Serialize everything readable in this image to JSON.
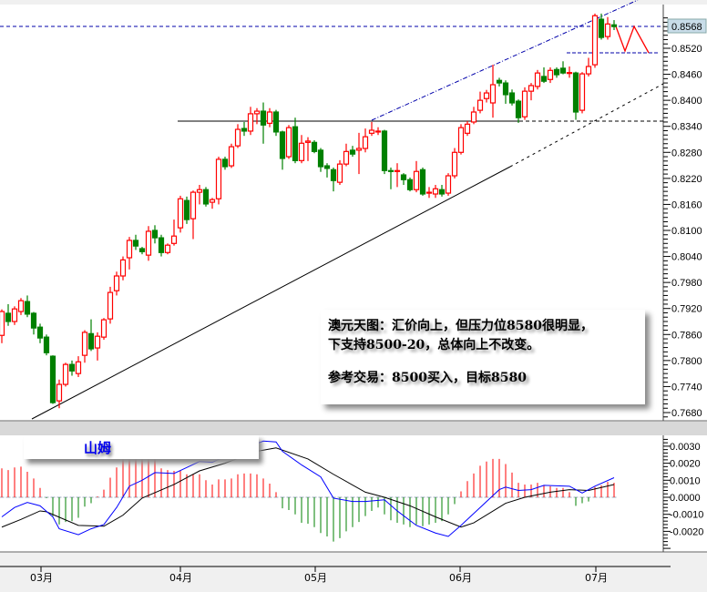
{
  "chart_data": [
    {
      "type": "candlestick",
      "title": "",
      "y_ticks": [
        "0.8520",
        "0.8460",
        "0.8400",
        "0.8340",
        "0.8280",
        "0.8220",
        "0.8160",
        "0.8100",
        "0.8040",
        "0.7980",
        "0.7920",
        "0.7860",
        "0.7800",
        "0.7740",
        "0.7680"
      ],
      "ylim": [
        0.7661,
        0.8602
      ],
      "current_price": "0.8568",
      "x_ticks": [
        "03月",
        "04月",
        "05月",
        "06月",
        "07月"
      ],
      "up_color": "#ff0000",
      "down_color": "#008000",
      "ohlc": [
        [
          0.7858,
          0.7918,
          0.784,
          0.7913
        ],
        [
          0.7909,
          0.793,
          0.788,
          0.789
        ],
        [
          0.789,
          0.7925,
          0.7882,
          0.7919
        ],
        [
          0.7913,
          0.7944,
          0.7905,
          0.7938
        ],
        [
          0.7936,
          0.795,
          0.79,
          0.7907
        ],
        [
          0.7909,
          0.7912,
          0.786,
          0.7875
        ],
        [
          0.7877,
          0.7885,
          0.784,
          0.7852
        ],
        [
          0.7854,
          0.786,
          0.7812,
          0.7818
        ],
        [
          0.781,
          0.7812,
          0.77,
          0.7703
        ],
        [
          0.7707,
          0.7756,
          0.769,
          0.7745
        ],
        [
          0.7745,
          0.7795,
          0.774,
          0.7791
        ],
        [
          0.7791,
          0.78,
          0.7765,
          0.7776
        ],
        [
          0.777,
          0.781,
          0.7762,
          0.7797
        ],
        [
          0.7812,
          0.787,
          0.7795,
          0.7865
        ],
        [
          0.7862,
          0.7895,
          0.7822,
          0.7827
        ],
        [
          0.7829,
          0.7865,
          0.78,
          0.7856
        ],
        [
          0.7854,
          0.7898,
          0.7848,
          0.7894
        ],
        [
          0.7896,
          0.797,
          0.7885,
          0.7957
        ],
        [
          0.7961,
          0.8005,
          0.795,
          0.7995
        ],
        [
          0.7995,
          0.804,
          0.7985,
          0.8032
        ],
        [
          0.8037,
          0.8085,
          0.801,
          0.8077
        ],
        [
          0.8077,
          0.809,
          0.8055,
          0.8064
        ],
        [
          0.8058,
          0.8062,
          0.8045,
          0.8051
        ],
        [
          0.8043,
          0.811,
          0.803,
          0.8098
        ],
        [
          0.81,
          0.8112,
          0.807,
          0.8083
        ],
        [
          0.8083,
          0.809,
          0.804,
          0.8049
        ],
        [
          0.8049,
          0.807,
          0.8045,
          0.8066
        ],
        [
          0.807,
          0.8125,
          0.8065,
          0.8087
        ],
        [
          0.8106,
          0.818,
          0.8095,
          0.8173
        ],
        [
          0.8169,
          0.8178,
          0.8115,
          0.8125
        ],
        [
          0.8127,
          0.8192,
          0.808,
          0.8188
        ],
        [
          0.8188,
          0.8205,
          0.816,
          0.8194
        ],
        [
          0.8194,
          0.82,
          0.8155,
          0.8161
        ],
        [
          0.8165,
          0.8175,
          0.815,
          0.8171
        ],
        [
          0.8173,
          0.827,
          0.816,
          0.8264
        ],
        [
          0.8264,
          0.827,
          0.824,
          0.8247
        ],
        [
          0.8249,
          0.83,
          0.8244,
          0.8293
        ],
        [
          0.8295,
          0.8345,
          0.829,
          0.8333
        ],
        [
          0.8335,
          0.835,
          0.8318,
          0.8329
        ],
        [
          0.8329,
          0.8385,
          0.832,
          0.8369
        ],
        [
          0.8369,
          0.8382,
          0.8345,
          0.8375
        ],
        [
          0.8375,
          0.8395,
          0.83,
          0.8343
        ],
        [
          0.8347,
          0.8382,
          0.8338,
          0.8373
        ],
        [
          0.8373,
          0.8378,
          0.8318,
          0.8327
        ],
        [
          0.8327,
          0.833,
          0.824,
          0.8266
        ],
        [
          0.827,
          0.8343,
          0.8265,
          0.8337
        ],
        [
          0.8339,
          0.836,
          0.8255,
          0.8261
        ],
        [
          0.8261,
          0.832,
          0.8255,
          0.8301
        ],
        [
          0.8303,
          0.8315,
          0.826,
          0.8306
        ],
        [
          0.8303,
          0.8308,
          0.8278,
          0.8282
        ],
        [
          0.8285,
          0.829,
          0.8235,
          0.8247
        ],
        [
          0.8249,
          0.8255,
          0.8222,
          0.8243
        ],
        [
          0.824,
          0.8245,
          0.819,
          0.8215
        ],
        [
          0.8211,
          0.8262,
          0.8205,
          0.8253
        ],
        [
          0.8253,
          0.83,
          0.8248,
          0.8282
        ],
        [
          0.8285,
          0.8295,
          0.827,
          0.8276
        ],
        [
          0.8285,
          0.8325,
          0.823,
          0.8289
        ],
        [
          0.8289,
          0.8335,
          0.828,
          0.8316
        ],
        [
          0.8324,
          0.835,
          0.8318,
          0.8331
        ],
        [
          0.8327,
          0.8338,
          0.832,
          0.8329
        ],
        [
          0.8329,
          0.8332,
          0.823,
          0.8238
        ],
        [
          0.8238,
          0.8245,
          0.8195,
          0.8236
        ],
        [
          0.8236,
          0.8255,
          0.82,
          0.8238
        ],
        [
          0.8228,
          0.8232,
          0.8205,
          0.8217
        ],
        [
          0.8217,
          0.8222,
          0.819,
          0.8194
        ],
        [
          0.8194,
          0.826,
          0.8188,
          0.8236
        ],
        [
          0.824,
          0.8245,
          0.818,
          0.8184
        ],
        [
          0.8186,
          0.82,
          0.8175,
          0.8188
        ],
        [
          0.8184,
          0.8205,
          0.8175,
          0.8196
        ],
        [
          0.8194,
          0.8205,
          0.8178,
          0.8184
        ],
        [
          0.8186,
          0.8232,
          0.818,
          0.8226
        ],
        [
          0.8226,
          0.829,
          0.822,
          0.828
        ],
        [
          0.828,
          0.8345,
          0.8275,
          0.8337
        ],
        [
          0.8324,
          0.8352,
          0.8318,
          0.8345
        ],
        [
          0.835,
          0.8385,
          0.8345,
          0.8373
        ],
        [
          0.8377,
          0.842,
          0.837,
          0.84
        ],
        [
          0.8404,
          0.8424,
          0.8395,
          0.8417
        ],
        [
          0.8394,
          0.8482,
          0.836,
          0.8436
        ],
        [
          0.8446,
          0.8452,
          0.8432,
          0.844
        ],
        [
          0.844,
          0.8446,
          0.8392,
          0.8413
        ],
        [
          0.8417,
          0.8425,
          0.8388,
          0.8394
        ],
        [
          0.8398,
          0.8402,
          0.8348,
          0.836
        ],
        [
          0.8362,
          0.843,
          0.8355,
          0.8421
        ],
        [
          0.8421,
          0.844,
          0.84,
          0.8434
        ],
        [
          0.8432,
          0.847,
          0.8425,
          0.8463
        ],
        [
          0.8455,
          0.8476,
          0.844,
          0.8444
        ],
        [
          0.8448,
          0.8476,
          0.844,
          0.8469
        ],
        [
          0.8471,
          0.8476,
          0.8452,
          0.8459
        ],
        [
          0.8474,
          0.849,
          0.846,
          0.8463
        ],
        [
          0.8462,
          0.8478,
          0.8452,
          0.8464
        ],
        [
          0.8463,
          0.8466,
          0.8355,
          0.8373
        ],
        [
          0.8377,
          0.8465,
          0.837,
          0.8461
        ],
        [
          0.8461,
          0.8498,
          0.8455,
          0.8478
        ],
        [
          0.8482,
          0.86,
          0.8475,
          0.8595
        ],
        [
          0.8587,
          0.86,
          0.854,
          0.8545
        ],
        [
          0.8547,
          0.8592,
          0.854,
          0.8576
        ],
        [
          0.8574,
          0.8585,
          0.8562,
          0.857
        ]
      ],
      "lines_color": "#0000aa",
      "annotation": {
        "line1": "澳元天图：汇价向上，但压力位8580很明显，",
        "line2": "下支持8500-20，总体向上不改变。",
        "line3": "参考交易：8500买入，目标8580"
      }
    },
    {
      "type": "macd",
      "label": "山姆",
      "y_ticks": [
        "0.0030",
        "0.0020",
        "0.0010",
        "0.0000",
        "-0.0010",
        "-0.0020"
      ],
      "ylim": [
        -0.0032,
        0.0037
      ],
      "histogram_up_color": "#ff0000",
      "histogram_down_color": "#008000",
      "histogram": [
        0.0017,
        0.0016,
        0.00175,
        0.0018,
        0.0015,
        0.0011,
        0.00055,
        -5e-05,
        -0.0011,
        -0.0016,
        -0.00145,
        -0.0014,
        -0.0012,
        -0.00055,
        -0.00035,
        5e-05,
        0.00045,
        0.00115,
        0.00175,
        0.0023,
        0.0025,
        0.0026,
        0.0026,
        0.0025,
        0.0024,
        0.0017,
        0.0016,
        0.00155,
        0.00155,
        0.00135,
        0.00135,
        0.00135,
        0.001,
        0.00075,
        0.00105,
        0.00105,
        0.0011,
        0.00135,
        0.0014,
        0.0014,
        0.00135,
        0.0011,
        0.0008,
        0.0003,
        -0.00065,
        -0.00075,
        -0.001,
        -0.0015,
        -0.00155,
        -0.00175,
        -0.0021,
        -0.0023,
        -0.0026,
        -0.0024,
        -0.002,
        -0.00175,
        -0.00145,
        -0.0011,
        -0.0008,
        -0.0006,
        -0.001,
        -0.00135,
        -0.0015,
        -0.0016,
        -0.00175,
        -0.0016,
        -0.0017,
        -0.0016,
        -0.0015,
        -0.0014,
        -0.001,
        -0.0004,
        0.00035,
        0.00095,
        0.0014,
        0.00185,
        0.0021,
        0.00225,
        0.00225,
        0.00195,
        0.00145,
        0.00085,
        0.00075,
        0.00075,
        0.00085,
        0.0007,
        0.00065,
        0.00055,
        0.00055,
        0.0003,
        -0.0005,
        -0.00035,
        -0.00025,
        0.0006,
        0.0007,
        0.0009,
        0.00085
      ],
      "macd_color": "#0000ff",
      "macd": [
        [
          1,
          -0.00115
        ],
        [
          3,
          -0.0006
        ],
        [
          5,
          -0.0003
        ],
        [
          7,
          -0.0005
        ],
        [
          9,
          -0.00115
        ],
        [
          10,
          -0.00185
        ],
        [
          13,
          -0.0022
        ],
        [
          15,
          -0.00185
        ],
        [
          17,
          -0.0016
        ],
        [
          19,
          -0.0006
        ],
        [
          21,
          0.00065
        ],
        [
          23,
          0.001
        ],
        [
          25,
          0.00145
        ],
        [
          28,
          0.0014
        ],
        [
          30,
          0.00175
        ],
        [
          32,
          0.0021
        ],
        [
          34,
          0.00205
        ],
        [
          36,
          0.0024
        ],
        [
          42,
          0.0033
        ],
        [
          44,
          0.00325
        ],
        [
          45,
          0.0027
        ],
        [
          48,
          0.0019
        ],
        [
          51,
          0.0012
        ],
        [
          53,
          -5e-05
        ],
        [
          56,
          -0.00025
        ],
        [
          58,
          -0.00025
        ],
        [
          61,
          -0.00015
        ],
        [
          63,
          -0.0008
        ],
        [
          66,
          -0.00165
        ],
        [
          69,
          -0.0021
        ],
        [
          71,
          -0.0023
        ],
        [
          73,
          -0.00165
        ],
        [
          76,
          -0.0006
        ],
        [
          79,
          0.00045
        ],
        [
          80,
          0.0006
        ],
        [
          82,
          0.0004
        ],
        [
          84,
          0.00045
        ],
        [
          86,
          0.0007
        ],
        [
          90,
          0.00065
        ],
        [
          92,
          0.00025
        ],
        [
          94,
          0.00065
        ],
        [
          97,
          0.00115
        ]
      ],
      "signal_color": "#000000",
      "signal": [
        [
          1,
          -0.00175
        ],
        [
          4,
          -0.0013
        ],
        [
          7,
          -0.0008
        ],
        [
          8,
          -0.00085
        ],
        [
          13,
          -0.00165
        ],
        [
          17,
          -0.0017
        ],
        [
          20,
          -0.00105
        ],
        [
          23,
          -5e-05
        ],
        [
          28,
          0.00075
        ],
        [
          32,
          0.00155
        ],
        [
          36,
          0.002
        ],
        [
          41,
          0.0027
        ],
        [
          44,
          0.0029
        ],
        [
          49,
          0.00225
        ],
        [
          53,
          0.00135
        ],
        [
          58,
          0.0003
        ],
        [
          61,
          0.0
        ],
        [
          65,
          -0.0005
        ],
        [
          69,
          -0.00115
        ],
        [
          73,
          -0.00175
        ],
        [
          75,
          -0.0015
        ],
        [
          80,
          -0.00035
        ],
        [
          83,
          0.0
        ],
        [
          87,
          0.0003
        ],
        [
          90,
          0.00045
        ],
        [
          93,
          0.0004
        ],
        [
          97,
          0.00075
        ]
      ]
    }
  ]
}
